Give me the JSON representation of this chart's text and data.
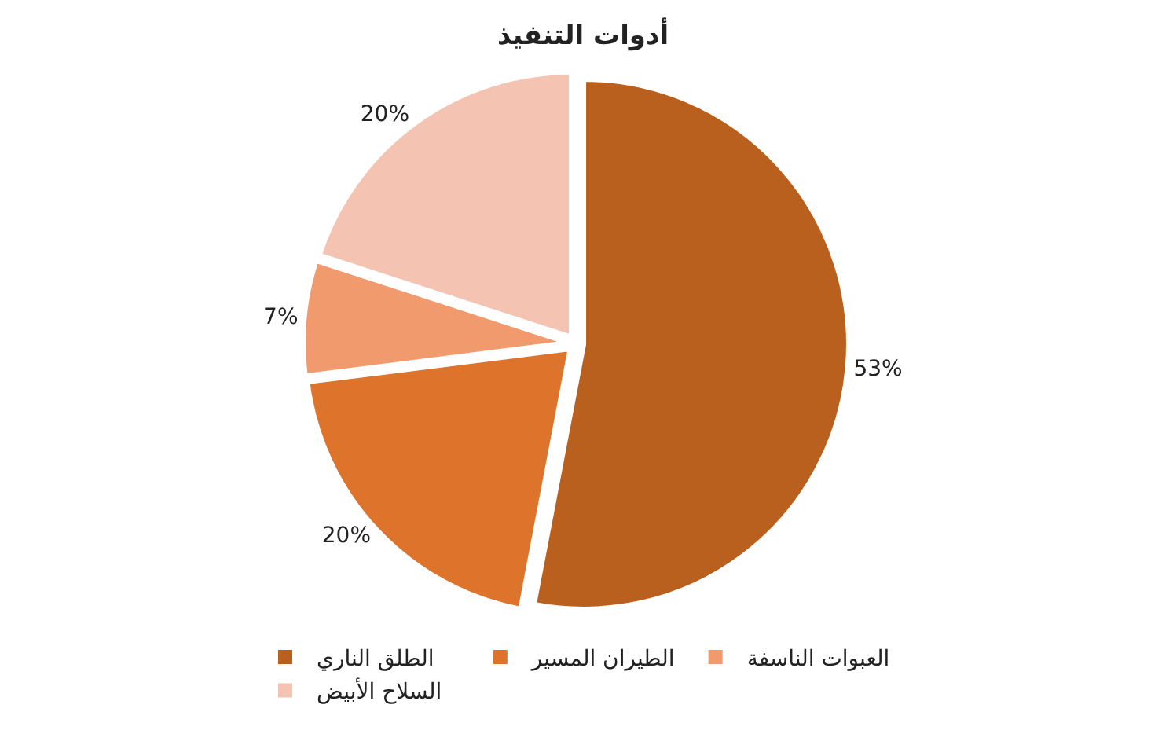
{
  "chart_data": {
    "type": "pie",
    "title": "أدوات التنفيذ",
    "categories": [
      "الطلق الناري",
      "الطيران المسير",
      "العبوات الناسفة",
      "السلاح الأبيض"
    ],
    "values": [
      53,
      20,
      7,
      20
    ],
    "value_labels": [
      "53%",
      "20%",
      "7%",
      "20%"
    ],
    "colors": [
      "#b9601f",
      "#de742c",
      "#f09a6e",
      "#f5c3b1"
    ],
    "legend": "bottom"
  }
}
